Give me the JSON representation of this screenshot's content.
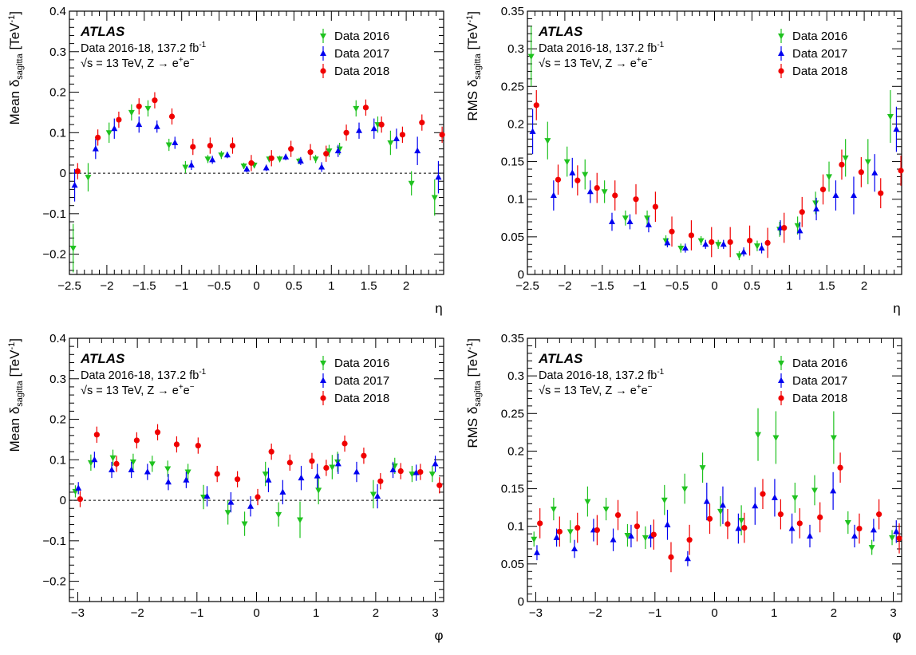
{
  "colors": {
    "Data 2016": "#1fc21f",
    "Data 2017": "#0000f0",
    "Data 2018": "#f00000"
  },
  "chart_data": [
    {
      "type": "scatter",
      "panel": "mean-eta",
      "xlabel": "η",
      "ylabel_main": "Mean δ",
      "ylabel_sub": "sagitta",
      "ylabel_unit": " [TeV",
      "ylabel_exp": "-1",
      "ylabel_close": "]",
      "xlim": [
        -2.5,
        2.5
      ],
      "ylim": [
        -0.25,
        0.4
      ],
      "xticks": [
        -2.5,
        -2,
        -1.5,
        -1,
        -0.5,
        0,
        0.5,
        1,
        1.5,
        2
      ],
      "yticks": [
        -0.2,
        -0.1,
        0,
        0.1,
        0.2,
        0.3,
        0.4
      ],
      "zero_line": true,
      "atlas_label": "ATLAS",
      "annotation_line1": "Data 2016-18, 137.2 fb",
      "annotation_line1_exp": "-1",
      "annotation_line2": "√s = 13 TeV, Z → e",
      "annotation_line2_b": "e",
      "legend_position": "top-right",
      "series": [
        {
          "name": "Data 2016",
          "marker": "triangle-down",
          "x": [
            -2.45,
            -2.25,
            -1.97,
            -1.67,
            -1.45,
            -1.17,
            -0.95,
            -0.65,
            -0.47,
            -0.17,
            -0.03,
            0.17,
            0.31,
            0.57,
            0.79,
            0.97,
            1.11,
            1.33,
            1.62,
            1.79,
            2.07,
            2.38
          ],
          "y": [
            -0.185,
            -0.01,
            0.1,
            0.15,
            0.16,
            0.07,
            0.015,
            0.035,
            0.045,
            0.018,
            0.02,
            0.035,
            0.035,
            0.03,
            0.035,
            0.055,
            0.06,
            0.16,
            0.12,
            0.075,
            -0.025,
            -0.06
          ],
          "err": [
            0.06,
            0.035,
            0.025,
            0.02,
            0.02,
            0.015,
            0.015,
            0.01,
            0.01,
            0.008,
            0.008,
            0.008,
            0.008,
            0.008,
            0.01,
            0.015,
            0.015,
            0.02,
            0.02,
            0.03,
            0.03,
            0.045
          ]
        },
        {
          "name": "Data 2017",
          "marker": "triangle-up",
          "x": [
            -2.43,
            -2.15,
            -1.9,
            -1.57,
            -1.33,
            -1.09,
            -0.87,
            -0.59,
            -0.39,
            -0.13,
            0.13,
            0.39,
            0.59,
            0.87,
            1.09,
            1.37,
            1.57,
            1.87,
            2.15,
            2.43
          ],
          "y": [
            -0.03,
            0.06,
            0.11,
            0.12,
            0.115,
            0.075,
            0.02,
            0.033,
            0.045,
            0.01,
            0.013,
            0.04,
            0.03,
            0.015,
            0.055,
            0.105,
            0.11,
            0.085,
            0.055,
            -0.01
          ],
          "err": [
            0.04,
            0.025,
            0.025,
            0.02,
            0.015,
            0.015,
            0.012,
            0.01,
            0.008,
            0.008,
            0.008,
            0.008,
            0.01,
            0.012,
            0.015,
            0.02,
            0.025,
            0.025,
            0.035,
            0.04
          ]
        },
        {
          "name": "Data 2018",
          "marker": "circle",
          "x": [
            -2.39,
            -2.12,
            -1.84,
            -1.57,
            -1.36,
            -1.13,
            -0.85,
            -0.62,
            -0.32,
            -0.07,
            0.2,
            0.46,
            0.72,
            0.93,
            1.2,
            1.46,
            1.67,
            1.95,
            2.21,
            2.48
          ],
          "y": [
            0.005,
            0.088,
            0.132,
            0.165,
            0.18,
            0.14,
            0.065,
            0.068,
            0.068,
            0.025,
            0.037,
            0.06,
            0.052,
            0.048,
            0.1,
            0.162,
            0.12,
            0.095,
            0.125,
            0.095
          ]
        }
      ]
    },
    {
      "type": "scatter",
      "panel": "rms-eta",
      "xlabel": "η",
      "ylabel_main": "RMS δ",
      "ylabel_sub": "sagitta",
      "ylabel_unit": " [TeV",
      "ylabel_exp": "-1",
      "ylabel_close": "]",
      "xlim": [
        -2.5,
        2.5
      ],
      "ylim": [
        0,
        0.35
      ],
      "xticks": [
        -2.5,
        -2,
        -1.5,
        -1,
        -0.5,
        0,
        0.5,
        1,
        1.5,
        2
      ],
      "yticks": [
        0,
        0.05,
        0.1,
        0.15,
        0.2,
        0.25,
        0.3,
        0.35
      ],
      "zero_line": false,
      "atlas_label": "ATLAS",
      "annotation_line1": "Data 2016-18, 137.2 fb",
      "annotation_line1_exp": "-1",
      "annotation_line2": "√s = 13 TeV, Z → e",
      "annotation_line2_b": "e",
      "legend_position": "top-right",
      "series": [
        {
          "name": "Data 2016",
          "marker": "triangle-down",
          "x": [
            -2.45,
            -2.23,
            -1.97,
            -1.73,
            -1.47,
            -1.19,
            -0.9,
            -0.65,
            -0.45,
            -0.18,
            0.05,
            0.33,
            0.57,
            0.87,
            1.11,
            1.35,
            1.53,
            1.75,
            2.05,
            2.35
          ],
          "y": [
            0.29,
            0.178,
            0.15,
            0.133,
            0.11,
            0.075,
            0.075,
            0.045,
            0.035,
            0.045,
            0.04,
            0.025,
            0.038,
            0.06,
            0.065,
            0.095,
            0.13,
            0.155,
            0.15,
            0.21
          ],
          "err": [
            0.04,
            0.025,
            0.02,
            0.02,
            0.015,
            0.01,
            0.01,
            0.007,
            0.006,
            0.006,
            0.006,
            0.006,
            0.007,
            0.01,
            0.012,
            0.015,
            0.02,
            0.025,
            0.03,
            0.035
          ]
        },
        {
          "name": "Data 2017",
          "marker": "triangle-up",
          "x": [
            -2.43,
            -2.15,
            -1.9,
            -1.66,
            -1.37,
            -1.13,
            -0.88,
            -0.63,
            -0.39,
            -0.12,
            0.12,
            0.39,
            0.63,
            0.88,
            1.14,
            1.36,
            1.62,
            1.86,
            2.14,
            2.43
          ],
          "y": [
            0.19,
            0.105,
            0.135,
            0.11,
            0.07,
            0.07,
            0.066,
            0.042,
            0.035,
            0.04,
            0.04,
            0.03,
            0.035,
            0.062,
            0.058,
            0.087,
            0.105,
            0.105,
            0.135,
            0.193
          ],
          "err": [
            0.03,
            0.02,
            0.02,
            0.015,
            0.012,
            0.01,
            0.01,
            0.006,
            0.006,
            0.006,
            0.006,
            0.006,
            0.007,
            0.01,
            0.012,
            0.015,
            0.02,
            0.025,
            0.025,
            0.03
          ]
        },
        {
          "name": "Data 2018",
          "marker": "circle",
          "x": [
            -2.38,
            -2.09,
            -1.83,
            -1.57,
            -1.33,
            -1.05,
            -0.79,
            -0.57,
            -0.31,
            -0.04,
            0.21,
            0.47,
            0.71,
            0.93,
            1.17,
            1.45,
            1.7,
            1.96,
            2.22,
            2.49
          ],
          "y": [
            0.225,
            0.126,
            0.125,
            0.115,
            0.105,
            0.1,
            0.09,
            0.057,
            0.052,
            0.043,
            0.043,
            0.045,
            0.042,
            0.062,
            0.083,
            0.113,
            0.146,
            0.136,
            0.108,
            0.138
          ]
        }
      ]
    },
    {
      "type": "scatter",
      "panel": "mean-phi",
      "xlabel": "φ",
      "ylabel_main": "Mean δ",
      "ylabel_sub": "sagitta",
      "ylabel_unit": " [TeV",
      "ylabel_exp": "-1",
      "ylabel_close": "]",
      "xlim": [
        -3.14,
        3.14
      ],
      "ylim": [
        -0.25,
        0.4
      ],
      "xticks": [
        -3,
        -2,
        -1,
        0,
        1,
        2,
        3
      ],
      "yticks": [
        -0.2,
        -0.1,
        0,
        0.1,
        0.2,
        0.3,
        0.4
      ],
      "zero_line": true,
      "atlas_label": "ATLAS",
      "annotation_line1": "Data 2016-18, 137.2 fb",
      "annotation_line1_exp": "-1",
      "annotation_line2": "√s = 13 TeV, Z → e",
      "annotation_line2_b": "e",
      "legend_position": "top-right",
      "series": [
        {
          "name": "Data 2016",
          "marker": "triangle-down",
          "x": [
            -3.04,
            -2.78,
            -2.41,
            -2.07,
            -1.75,
            -1.49,
            -1.15,
            -0.89,
            -0.48,
            -0.2,
            0.15,
            0.37,
            0.73,
            1.04,
            1.27,
            1.36,
            1.96,
            2.32,
            2.61,
            2.95
          ],
          "y": [
            0.022,
            0.093,
            0.105,
            0.095,
            0.09,
            0.078,
            0.07,
            0.008,
            -0.03,
            -0.058,
            0.065,
            -0.035,
            -0.048,
            0.025,
            0.082,
            0.095,
            0.015,
            0.085,
            0.065,
            0.065
          ],
          "err": [
            0.015,
            0.02,
            0.02,
            0.02,
            0.02,
            0.02,
            0.02,
            0.03,
            0.03,
            0.03,
            0.03,
            0.03,
            0.045,
            0.035,
            0.03,
            0.025,
            0.035,
            0.02,
            0.02,
            0.02
          ]
        },
        {
          "name": "Data 2017",
          "marker": "triangle-up",
          "x": [
            -2.99,
            -2.72,
            -2.43,
            -2.1,
            -1.83,
            -1.48,
            -1.18,
            -0.83,
            -0.43,
            -0.1,
            0.2,
            0.44,
            0.75,
            1.02,
            1.37,
            1.68,
            2.03,
            2.29,
            2.68,
            3.0
          ],
          "y": [
            0.03,
            0.1,
            0.075,
            0.075,
            0.07,
            0.045,
            0.05,
            0.01,
            -0.005,
            -0.015,
            0.05,
            0.02,
            0.055,
            0.06,
            0.09,
            0.07,
            0.01,
            0.075,
            0.068,
            0.09
          ],
          "err": [
            0.015,
            0.02,
            0.02,
            0.02,
            0.02,
            0.02,
            0.02,
            0.025,
            0.025,
            0.025,
            0.03,
            0.03,
            0.03,
            0.03,
            0.025,
            0.025,
            0.03,
            0.02,
            0.02,
            0.02
          ]
        },
        {
          "name": "Data 2018",
          "marker": "circle",
          "x": [
            -2.96,
            -2.68,
            -2.35,
            -2.01,
            -1.66,
            -1.34,
            -0.98,
            -0.66,
            -0.32,
            0.02,
            0.25,
            0.56,
            0.93,
            1.17,
            1.48,
            1.8,
            2.08,
            2.42,
            2.75,
            3.07
          ],
          "y": [
            0.003,
            0.162,
            0.09,
            0.148,
            0.168,
            0.138,
            0.135,
            0.065,
            0.052,
            0.008,
            0.12,
            0.093,
            0.097,
            0.08,
            0.14,
            0.11,
            0.047,
            0.072,
            0.07,
            0.037
          ]
        }
      ]
    },
    {
      "type": "scatter",
      "panel": "rms-phi",
      "xlabel": "φ",
      "ylabel_main": "RMS δ",
      "ylabel_sub": "sagitta",
      "ylabel_unit": " [TeV",
      "ylabel_exp": "-1",
      "ylabel_close": "]",
      "xlim": [
        -3.14,
        3.14
      ],
      "ylim": [
        0,
        0.35
      ],
      "xticks": [
        -3,
        -2,
        -1,
        0,
        1,
        2,
        3
      ],
      "yticks": [
        0,
        0.05,
        0.1,
        0.15,
        0.2,
        0.25,
        0.3,
        0.35
      ],
      "zero_line": false,
      "atlas_label": "ATLAS",
      "annotation_line1": "Data 2016-18, 137.2 fb",
      "annotation_line1_exp": "-1",
      "annotation_line2": "√s = 13 TeV, Z → e",
      "annotation_line2_b": "e",
      "legend_position": "top-right",
      "series": [
        {
          "name": "Data 2016",
          "marker": "triangle-down",
          "x": [
            -3.03,
            -2.7,
            -2.42,
            -2.13,
            -1.82,
            -1.46,
            -1.16,
            -0.84,
            -0.5,
            -0.2,
            0.1,
            0.45,
            0.73,
            1.03,
            1.35,
            1.68,
            2.0,
            2.24,
            2.64,
            2.98
          ],
          "y": [
            0.083,
            0.123,
            0.093,
            0.133,
            0.123,
            0.088,
            0.085,
            0.135,
            0.15,
            0.178,
            0.12,
            0.108,
            0.222,
            0.218,
            0.138,
            0.148,
            0.218,
            0.105,
            0.072,
            0.085
          ],
          "err": [
            0.01,
            0.015,
            0.015,
            0.02,
            0.015,
            0.015,
            0.015,
            0.02,
            0.02,
            0.02,
            0.02,
            0.02,
            0.035,
            0.035,
            0.02,
            0.02,
            0.035,
            0.015,
            0.01,
            0.01
          ]
        },
        {
          "name": "Data 2017",
          "marker": "triangle-up",
          "x": [
            -2.98,
            -2.65,
            -2.35,
            -2.03,
            -1.7,
            -1.4,
            -1.07,
            -0.79,
            -0.45,
            -0.13,
            0.14,
            0.4,
            0.68,
            1.01,
            1.3,
            1.6,
            1.99,
            2.35,
            2.67,
            3.05
          ],
          "y": [
            0.065,
            0.085,
            0.07,
            0.095,
            0.082,
            0.087,
            0.087,
            0.102,
            0.057,
            0.133,
            0.128,
            0.097,
            0.127,
            0.138,
            0.097,
            0.087,
            0.147,
            0.087,
            0.095,
            0.093
          ],
          "err": [
            0.01,
            0.012,
            0.012,
            0.015,
            0.015,
            0.015,
            0.015,
            0.02,
            0.01,
            0.025,
            0.025,
            0.02,
            0.025,
            0.025,
            0.02,
            0.015,
            0.025,
            0.015,
            0.015,
            0.015
          ]
        },
        {
          "name": "Data 2018",
          "marker": "circle",
          "x": [
            -2.93,
            -2.6,
            -2.3,
            -1.97,
            -1.62,
            -1.3,
            -1.02,
            -0.73,
            -0.42,
            -0.08,
            0.22,
            0.5,
            0.81,
            1.11,
            1.43,
            1.77,
            2.11,
            2.43,
            2.76,
            3.1
          ],
          "y": [
            0.104,
            0.093,
            0.098,
            0.095,
            0.115,
            0.1,
            0.089,
            0.059,
            0.082,
            0.11,
            0.103,
            0.098,
            0.143,
            0.116,
            0.104,
            0.112,
            0.178,
            0.097,
            0.116,
            0.084
          ]
        }
      ]
    }
  ]
}
